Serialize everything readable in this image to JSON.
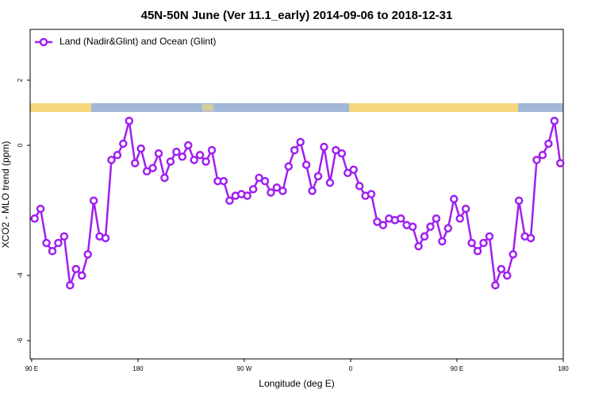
{
  "chart_data": {
    "type": "line",
    "title": "45N-50N June (Ver 11.1_early)   2014-09-06 to 2018-12-31",
    "x_label": "Longitude (deg E)",
    "y_label": "XCO2 - MLO trend (ppm)",
    "x": [
      92.5,
      97.5,
      102.5,
      107.5,
      112.5,
      117.5,
      122.5,
      127.5,
      132.5,
      137.5,
      142.5,
      147.5,
      152.5,
      157.5,
      162.5,
      167.5,
      172.5,
      177.5,
      182.5,
      187.5,
      192.5,
      197.5,
      202.5,
      207.5,
      212.5,
      217.5,
      222.5,
      227.5,
      232.5,
      237.5,
      242.5,
      247.5,
      252.5,
      257.5,
      262.5,
      267.5,
      272.5,
      277.5,
      282.5,
      287.5,
      292.5,
      297.5,
      302.5,
      307.5,
      312.5,
      317.5,
      322.5,
      327.5,
      332.5,
      337.5,
      342.5,
      347.5,
      352.5,
      357.5,
      362.5,
      367.5,
      372.5,
      377.5,
      382.5,
      387.5,
      392.5,
      397.5,
      402.5,
      407.5,
      412.5,
      417.5,
      422.5,
      427.5,
      432.5,
      437.5,
      442.5,
      447.5,
      452.5,
      457.5,
      462.5,
      467.5,
      472.5,
      477.5,
      482.5,
      487.5,
      492.5,
      497.5,
      502.5,
      507.5,
      512.5,
      517.5,
      522.5,
      527.5,
      532.5,
      537.5
    ],
    "series": [
      {
        "name": "Land (Nadir&Glint) and Ocean (Glint)",
        "color": "#a020f0",
        "values": [
          -2.25,
          -1.95,
          -3.0,
          -3.25,
          -3.0,
          -2.8,
          -4.3,
          -3.8,
          -4.0,
          -3.35,
          -1.7,
          -2.8,
          -2.85,
          -0.45,
          -0.3,
          0.05,
          0.75,
          -0.55,
          -0.1,
          -0.8,
          -0.7,
          -0.25,
          -1.0,
          -0.5,
          -0.2,
          -0.35,
          0.0,
          -0.45,
          -0.3,
          -0.5,
          -0.15,
          -1.1,
          -1.1,
          -1.7,
          -1.55,
          -1.5,
          -1.55,
          -1.35,
          -1.0,
          -1.1,
          -1.45,
          -1.3,
          -1.4,
          -0.65,
          -0.15,
          0.1,
          -0.6,
          -1.4,
          -0.95,
          -0.05,
          -1.15,
          -0.15,
          -0.25,
          -0.85,
          -0.75,
          -1.25,
          -1.55,
          -1.5,
          -2.35,
          -2.45,
          -2.25,
          -2.3,
          -2.25,
          -2.45,
          -2.5,
          -3.1,
          -2.8,
          -2.5,
          -2.25,
          -2.95,
          -2.55,
          -1.65,
          -2.25,
          -1.95,
          -3.0,
          -3.25,
          -3.0,
          -2.8,
          -4.3,
          -3.8,
          -4.0,
          -3.35,
          -1.7,
          -2.8,
          -2.85,
          -0.45,
          -0.3,
          0.05,
          0.75,
          -0.55
        ]
      }
    ],
    "xlim": [
      88.7,
      540
    ],
    "xticks": [
      {
        "value": 90,
        "label": "90 E"
      },
      180,
      {
        "value": 270,
        "label": "90 W"
      },
      {
        "value": 360,
        "label": "0"
      },
      {
        "value": 450,
        "label": "90 E"
      },
      {
        "value": 540,
        "label": "180"
      }
    ],
    "ylim": [
      -6.56,
      3.56
    ],
    "yticks": [
      -6,
      -4,
      0,
      2
    ],
    "grid": false,
    "legend": "top-left"
  }
}
